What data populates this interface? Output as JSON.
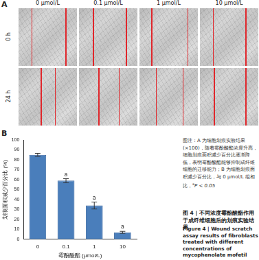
{
  "panels": {
    "a": "A",
    "b": "B"
  },
  "panel_a": {
    "columns": [
      "0 μmol/L",
      "0.1 μmol/L",
      "1 μmol/L",
      "10 μmol/L"
    ],
    "rows": [
      "0 h",
      "24 h"
    ]
  },
  "chart_data": {
    "type": "bar",
    "x_label": "霉酚酸酯 (μmol/L)",
    "y_label": "划痕面积减少百分比 (%)",
    "categories": [
      "0",
      "0.1",
      "1",
      "10"
    ],
    "values": [
      85,
      59,
      34,
      7
    ],
    "errors": [
      1.5,
      2,
      3.5,
      1
    ],
    "annotations": [
      null,
      "a",
      "a",
      "a"
    ],
    "color": "#4a7ebb",
    "ylim": [
      0,
      100
    ],
    "yticks": [
      0,
      10,
      20,
      30,
      40,
      50,
      60,
      70,
      80,
      90,
      100
    ],
    "grid": false
  },
  "note": {
    "text": "图注：A 为细胞划痕实验结果(×100)，随着霉酚酸酯浓度升高，细胞划痕面积减少百分比逐渐降低，表明霉酚酸酯能够抑制成纤维细胞的迁移能力；B 为细胞划痕面积减少百分比，与 0 μmol/L 组相比，",
    "mark": "a",
    "significance": "P < 0.05"
  },
  "caption_zh": "图 4 | 不同浓度霉酚酸酯作用于成纤维细胞后的划痕实验结果",
  "caption_en": "Figure 4 | Wound scratch assay results of fibroblasts treated with different concentrations of mycophenolate mofetil"
}
